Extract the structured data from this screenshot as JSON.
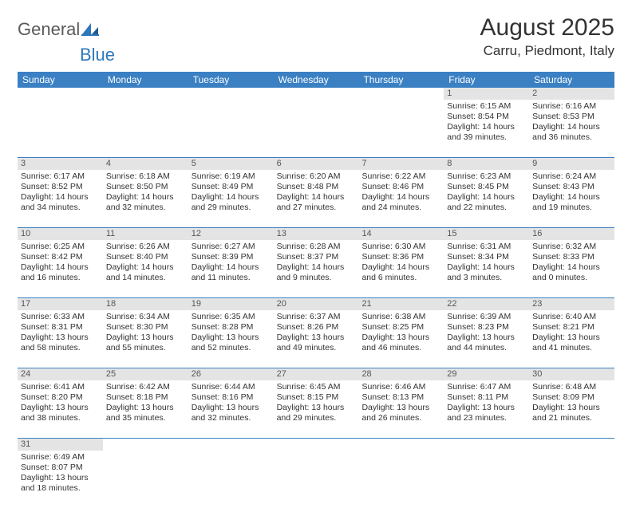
{
  "logo": {
    "part1": "General",
    "part2": "Blue"
  },
  "title": "August 2025",
  "location": "Carru, Piedmont, Italy",
  "colors": {
    "header_bg": "#3a80c3",
    "header_text": "#ffffff",
    "daynum_bg": "#e4e4e4",
    "border": "#3a80c3",
    "logo_gray": "#5a5a5a",
    "logo_blue": "#2f77bb"
  },
  "weekdays": [
    "Sunday",
    "Monday",
    "Tuesday",
    "Wednesday",
    "Thursday",
    "Friday",
    "Saturday"
  ],
  "weeks": [
    [
      null,
      null,
      null,
      null,
      null,
      {
        "n": "1",
        "sr": "Sunrise: 6:15 AM",
        "ss": "Sunset: 8:54 PM",
        "d1": "Daylight: 14 hours",
        "d2": "and 39 minutes."
      },
      {
        "n": "2",
        "sr": "Sunrise: 6:16 AM",
        "ss": "Sunset: 8:53 PM",
        "d1": "Daylight: 14 hours",
        "d2": "and 36 minutes."
      }
    ],
    [
      {
        "n": "3",
        "sr": "Sunrise: 6:17 AM",
        "ss": "Sunset: 8:52 PM",
        "d1": "Daylight: 14 hours",
        "d2": "and 34 minutes."
      },
      {
        "n": "4",
        "sr": "Sunrise: 6:18 AM",
        "ss": "Sunset: 8:50 PM",
        "d1": "Daylight: 14 hours",
        "d2": "and 32 minutes."
      },
      {
        "n": "5",
        "sr": "Sunrise: 6:19 AM",
        "ss": "Sunset: 8:49 PM",
        "d1": "Daylight: 14 hours",
        "d2": "and 29 minutes."
      },
      {
        "n": "6",
        "sr": "Sunrise: 6:20 AM",
        "ss": "Sunset: 8:48 PM",
        "d1": "Daylight: 14 hours",
        "d2": "and 27 minutes."
      },
      {
        "n": "7",
        "sr": "Sunrise: 6:22 AM",
        "ss": "Sunset: 8:46 PM",
        "d1": "Daylight: 14 hours",
        "d2": "and 24 minutes."
      },
      {
        "n": "8",
        "sr": "Sunrise: 6:23 AM",
        "ss": "Sunset: 8:45 PM",
        "d1": "Daylight: 14 hours",
        "d2": "and 22 minutes."
      },
      {
        "n": "9",
        "sr": "Sunrise: 6:24 AM",
        "ss": "Sunset: 8:43 PM",
        "d1": "Daylight: 14 hours",
        "d2": "and 19 minutes."
      }
    ],
    [
      {
        "n": "10",
        "sr": "Sunrise: 6:25 AM",
        "ss": "Sunset: 8:42 PM",
        "d1": "Daylight: 14 hours",
        "d2": "and 16 minutes."
      },
      {
        "n": "11",
        "sr": "Sunrise: 6:26 AM",
        "ss": "Sunset: 8:40 PM",
        "d1": "Daylight: 14 hours",
        "d2": "and 14 minutes."
      },
      {
        "n": "12",
        "sr": "Sunrise: 6:27 AM",
        "ss": "Sunset: 8:39 PM",
        "d1": "Daylight: 14 hours",
        "d2": "and 11 minutes."
      },
      {
        "n": "13",
        "sr": "Sunrise: 6:28 AM",
        "ss": "Sunset: 8:37 PM",
        "d1": "Daylight: 14 hours",
        "d2": "and 9 minutes."
      },
      {
        "n": "14",
        "sr": "Sunrise: 6:30 AM",
        "ss": "Sunset: 8:36 PM",
        "d1": "Daylight: 14 hours",
        "d2": "and 6 minutes."
      },
      {
        "n": "15",
        "sr": "Sunrise: 6:31 AM",
        "ss": "Sunset: 8:34 PM",
        "d1": "Daylight: 14 hours",
        "d2": "and 3 minutes."
      },
      {
        "n": "16",
        "sr": "Sunrise: 6:32 AM",
        "ss": "Sunset: 8:33 PM",
        "d1": "Daylight: 14 hours",
        "d2": "and 0 minutes."
      }
    ],
    [
      {
        "n": "17",
        "sr": "Sunrise: 6:33 AM",
        "ss": "Sunset: 8:31 PM",
        "d1": "Daylight: 13 hours",
        "d2": "and 58 minutes."
      },
      {
        "n": "18",
        "sr": "Sunrise: 6:34 AM",
        "ss": "Sunset: 8:30 PM",
        "d1": "Daylight: 13 hours",
        "d2": "and 55 minutes."
      },
      {
        "n": "19",
        "sr": "Sunrise: 6:35 AM",
        "ss": "Sunset: 8:28 PM",
        "d1": "Daylight: 13 hours",
        "d2": "and 52 minutes."
      },
      {
        "n": "20",
        "sr": "Sunrise: 6:37 AM",
        "ss": "Sunset: 8:26 PM",
        "d1": "Daylight: 13 hours",
        "d2": "and 49 minutes."
      },
      {
        "n": "21",
        "sr": "Sunrise: 6:38 AM",
        "ss": "Sunset: 8:25 PM",
        "d1": "Daylight: 13 hours",
        "d2": "and 46 minutes."
      },
      {
        "n": "22",
        "sr": "Sunrise: 6:39 AM",
        "ss": "Sunset: 8:23 PM",
        "d1": "Daylight: 13 hours",
        "d2": "and 44 minutes."
      },
      {
        "n": "23",
        "sr": "Sunrise: 6:40 AM",
        "ss": "Sunset: 8:21 PM",
        "d1": "Daylight: 13 hours",
        "d2": "and 41 minutes."
      }
    ],
    [
      {
        "n": "24",
        "sr": "Sunrise: 6:41 AM",
        "ss": "Sunset: 8:20 PM",
        "d1": "Daylight: 13 hours",
        "d2": "and 38 minutes."
      },
      {
        "n": "25",
        "sr": "Sunrise: 6:42 AM",
        "ss": "Sunset: 8:18 PM",
        "d1": "Daylight: 13 hours",
        "d2": "and 35 minutes."
      },
      {
        "n": "26",
        "sr": "Sunrise: 6:44 AM",
        "ss": "Sunset: 8:16 PM",
        "d1": "Daylight: 13 hours",
        "d2": "and 32 minutes."
      },
      {
        "n": "27",
        "sr": "Sunrise: 6:45 AM",
        "ss": "Sunset: 8:15 PM",
        "d1": "Daylight: 13 hours",
        "d2": "and 29 minutes."
      },
      {
        "n": "28",
        "sr": "Sunrise: 6:46 AM",
        "ss": "Sunset: 8:13 PM",
        "d1": "Daylight: 13 hours",
        "d2": "and 26 minutes."
      },
      {
        "n": "29",
        "sr": "Sunrise: 6:47 AM",
        "ss": "Sunset: 8:11 PM",
        "d1": "Daylight: 13 hours",
        "d2": "and 23 minutes."
      },
      {
        "n": "30",
        "sr": "Sunrise: 6:48 AM",
        "ss": "Sunset: 8:09 PM",
        "d1": "Daylight: 13 hours",
        "d2": "and 21 minutes."
      }
    ],
    [
      {
        "n": "31",
        "sr": "Sunrise: 6:49 AM",
        "ss": "Sunset: 8:07 PM",
        "d1": "Daylight: 13 hours",
        "d2": "and 18 minutes."
      },
      null,
      null,
      null,
      null,
      null,
      null
    ]
  ]
}
